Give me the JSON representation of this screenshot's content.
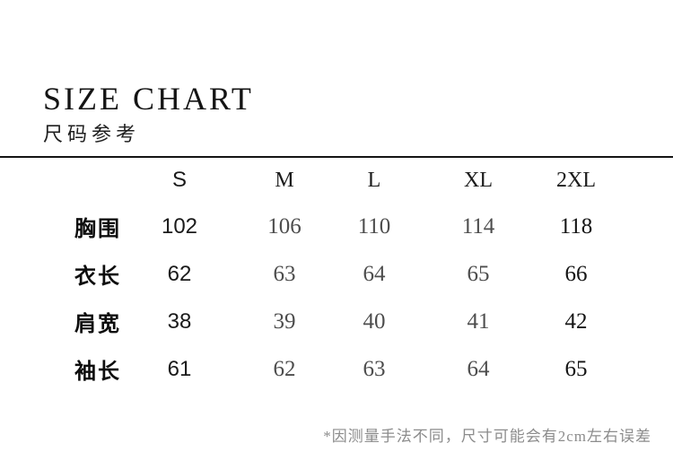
{
  "header": {
    "title": "SIZE CHART",
    "subtitle": "尺码参考"
  },
  "table": {
    "columns": [
      "S",
      "M",
      "L",
      "XL",
      "2XL"
    ],
    "rows": [
      {
        "label": "胸围",
        "values": [
          "102",
          "106",
          "110",
          "114",
          "118"
        ]
      },
      {
        "label": "衣长",
        "values": [
          "62",
          "63",
          "64",
          "65",
          "66"
        ]
      },
      {
        "label": "肩宽",
        "values": [
          "38",
          "39",
          "40",
          "41",
          "42"
        ]
      },
      {
        "label": "袖长",
        "values": [
          "61",
          "62",
          "63",
          "64",
          "65"
        ]
      }
    ]
  },
  "footnote": "*因测量手法不同，尺寸可能会有2cm左右误差",
  "colors": {
    "background": "#ffffff",
    "text_primary": "#141414",
    "text_secondary": "#4d4d4d",
    "text_muted": "#8c8c8c",
    "divider": "#141414"
  },
  "chart_data": {
    "type": "table",
    "title": "SIZE CHART",
    "subtitle": "尺码参考",
    "columns": [
      "S",
      "M",
      "L",
      "XL",
      "2XL"
    ],
    "rows": [
      {
        "measurement": "胸围",
        "values": [
          102,
          106,
          110,
          114,
          118
        ]
      },
      {
        "measurement": "衣长",
        "values": [
          62,
          63,
          64,
          65,
          66
        ]
      },
      {
        "measurement": "肩宽",
        "values": [
          38,
          39,
          40,
          41,
          42
        ]
      },
      {
        "measurement": "袖长",
        "values": [
          61,
          62,
          63,
          64,
          65
        ]
      }
    ],
    "footnote": "*因测量手法不同，尺寸可能会有2cm左右误差"
  }
}
